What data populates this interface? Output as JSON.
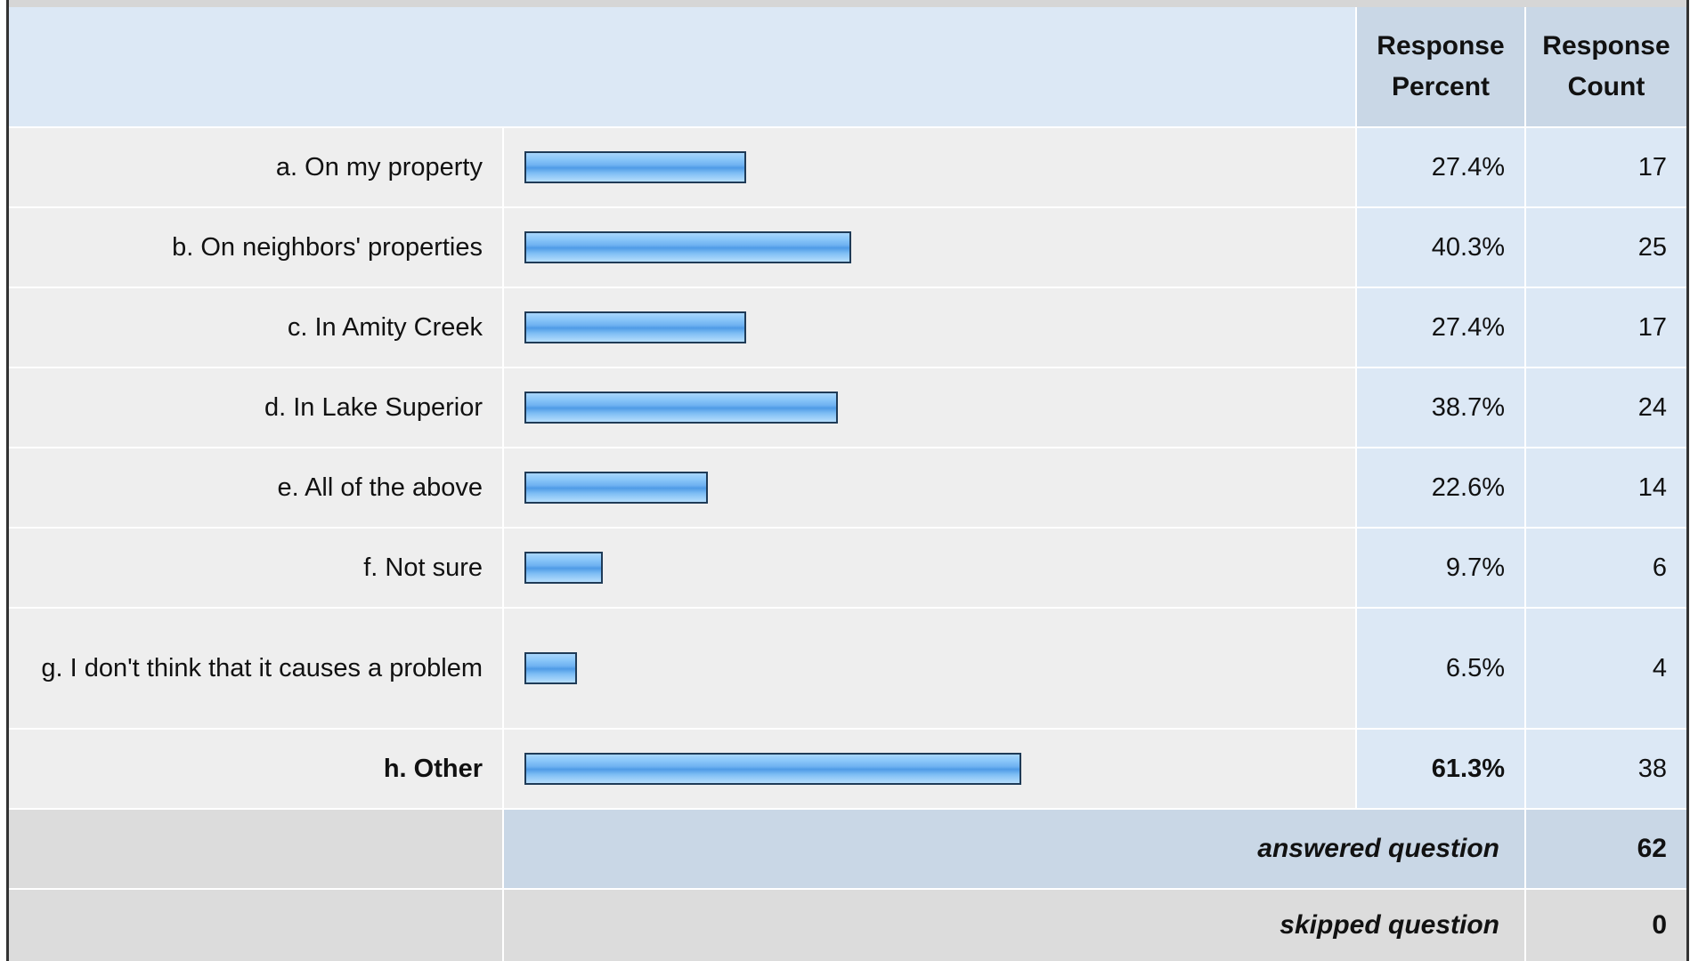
{
  "header": {
    "percent_label": "Response Percent",
    "count_label": "Response Count"
  },
  "chart_data": {
    "type": "bar",
    "categories": [
      "a. On my property",
      "b. On neighbors' properties",
      "c. In Amity Creek",
      "d. In Lake Superior",
      "e. All of the above",
      "f. Not sure",
      "g. I don't think that it causes a problem",
      "h. Other"
    ],
    "values": [
      27.4,
      40.3,
      27.4,
      38.7,
      22.6,
      9.7,
      6.5,
      61.3
    ],
    "ylim": [
      0,
      100
    ]
  },
  "rows": [
    {
      "label": "a. On my property",
      "percent": "27.4%",
      "count": "17",
      "bold": false
    },
    {
      "label": "b. On neighbors' properties",
      "percent": "40.3%",
      "count": "25",
      "bold": false
    },
    {
      "label": "c. In Amity Creek",
      "percent": "27.4%",
      "count": "17",
      "bold": false
    },
    {
      "label": "d. In Lake Superior",
      "percent": "38.7%",
      "count": "24",
      "bold": false
    },
    {
      "label": "e. All of the above",
      "percent": "22.6%",
      "count": "14",
      "bold": false
    },
    {
      "label": "f. Not sure",
      "percent": "9.7%",
      "count": "6",
      "bold": false
    },
    {
      "label": "g. I don't think that it causes a problem",
      "percent": "6.5%",
      "count": "4",
      "bold": false
    },
    {
      "label": "h. Other",
      "percent": "61.3%",
      "count": "38",
      "bold": true
    }
  ],
  "footer": {
    "answered_label": "answered question",
    "answered_count": "62",
    "skipped_label": "skipped question",
    "skipped_count": "0"
  },
  "colors": {
    "header_bg": "#dce8f5",
    "header_col_bg": "#c9d7e6",
    "row_bg": "#eeeeee",
    "bar_fill": "#6fb2f1",
    "bar_border": "#1f3b57"
  }
}
